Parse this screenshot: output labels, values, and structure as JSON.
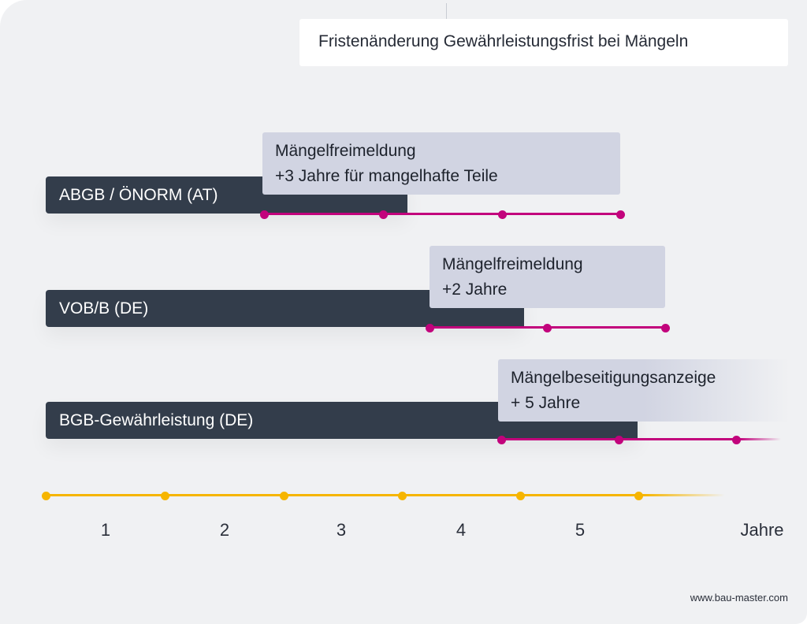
{
  "title": "Fristenänderung Gewährleistungsfrist bei Mängeln",
  "colors": {
    "bar": "#333d4b",
    "callout": "#d1d4e2",
    "timeline": "#c2037c",
    "axis": "#f6b500",
    "background": "#f0f1f3"
  },
  "rows": [
    {
      "label": "ABGB / ÖNORM (AT)",
      "callout_line1": "Mängelfreimeldung",
      "callout_line2": "+3 Jahre für mangelhafte Teile"
    },
    {
      "label": "VOB/B (DE)",
      "callout_line1": "Mängelfreimeldung",
      "callout_line2": "+2 Jahre"
    },
    {
      "label": "BGB-Gewährleistung (DE)",
      "callout_line1": "Mängelbeseitigungsanzeige",
      "callout_line2": "+ 5 Jahre"
    }
  ],
  "axis": {
    "ticks": [
      "1",
      "2",
      "3",
      "4",
      "5"
    ],
    "unit": "Jahre"
  },
  "footer": "www.bau-master.com"
}
